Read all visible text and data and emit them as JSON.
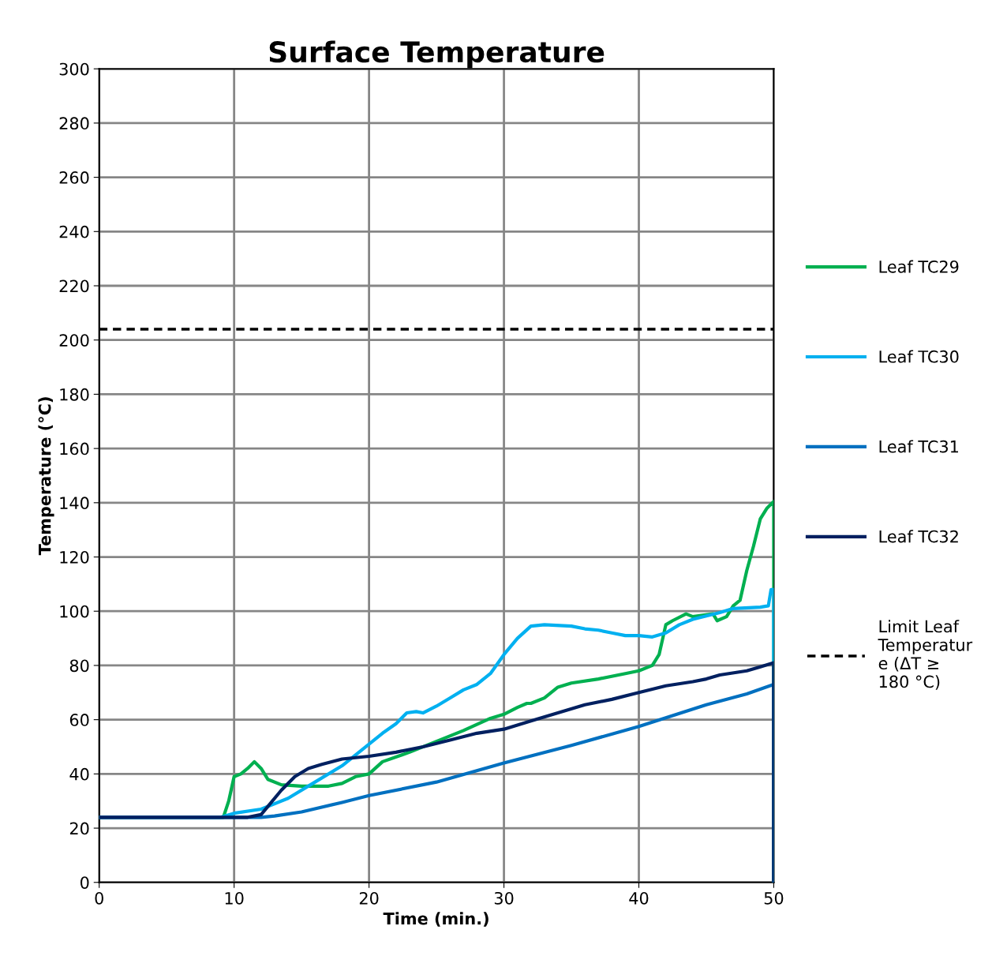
{
  "chart_data": {
    "type": "line",
    "title": "Surface Temperature",
    "xlabel": "Time (min.)",
    "ylabel": "Temperature (°C)",
    "xlim": [
      0,
      50
    ],
    "xticks": [
      0,
      10,
      20,
      30,
      40,
      50
    ],
    "ylim": [
      0,
      300
    ],
    "yticks": [
      0,
      20,
      40,
      60,
      80,
      100,
      120,
      140,
      160,
      180,
      200,
      220,
      240,
      260,
      280,
      300
    ],
    "grid": true,
    "legend": "right",
    "marker": "none",
    "line_style": "solid",
    "series": [
      {
        "name": "Leaf TC29",
        "color": "#00b050",
        "x": [
          0,
          5,
          9.2,
          9.6,
          10,
          10.5,
          11,
          11.5,
          12,
          12.5,
          13.5,
          15,
          17,
          18,
          19,
          20,
          21,
          23,
          25,
          27,
          29,
          30,
          31,
          31.7,
          32,
          33,
          34,
          35,
          37,
          39,
          40,
          41,
          41.5,
          42,
          42.5,
          43.5,
          44,
          45.5,
          45.8,
          46.5,
          47,
          47.5,
          48,
          48.5,
          49,
          49.5,
          50,
          50
        ],
        "values": [
          24,
          24,
          24,
          30,
          39,
          40,
          42,
          44.5,
          42,
          38,
          36,
          35.5,
          35.5,
          36.5,
          39,
          40,
          44.5,
          48,
          52,
          56,
          60.5,
          62,
          64.5,
          66,
          66,
          68,
          72,
          73.5,
          75,
          77,
          78,
          80,
          84,
          95,
          96.5,
          99,
          98,
          99,
          96.5,
          98,
          102,
          104,
          115,
          124,
          134,
          138,
          140.5,
          0
        ]
      },
      {
        "name": "Leaf TC30",
        "color": "#00b0f0",
        "x": [
          0,
          5,
          9,
          10,
          12,
          14,
          16,
          18,
          19,
          20,
          21,
          22,
          22.8,
          23.5,
          24,
          25,
          26,
          27,
          28,
          29,
          30,
          31,
          32,
          33,
          35,
          36,
          37,
          38,
          39,
          40,
          41,
          42,
          43,
          44,
          46,
          47,
          49,
          49.6,
          49.8,
          50,
          50
        ],
        "values": [
          24,
          24,
          24,
          25.5,
          27,
          31,
          37,
          43,
          47,
          51,
          55,
          58.5,
          62.5,
          63,
          62.5,
          65,
          68,
          71,
          73,
          77,
          84,
          90,
          94.5,
          95,
          94.5,
          93.5,
          93,
          92,
          91,
          91,
          90.5,
          92,
          95,
          97,
          99.5,
          101,
          101.5,
          102,
          108,
          108,
          0
        ]
      },
      {
        "name": "Leaf TC31",
        "color": "#0070c0",
        "x": [
          0,
          5,
          12,
          13,
          15,
          18,
          20,
          25,
          30,
          35,
          40,
          45,
          48,
          50,
          50
        ],
        "values": [
          24,
          24,
          24,
          24.5,
          26,
          29.5,
          32,
          37,
          44,
          50.5,
          57.5,
          65.5,
          69.5,
          73,
          0
        ]
      },
      {
        "name": "Leaf TC32",
        "color": "#002060",
        "x": [
          0,
          5,
          11,
          12,
          12.5,
          13.5,
          14.5,
          15.5,
          16.5,
          18,
          20,
          22,
          24,
          26,
          28,
          30,
          32,
          34,
          36,
          38,
          40,
          42,
          44,
          45,
          46,
          48,
          49,
          50,
          50
        ],
        "values": [
          24,
          24,
          24,
          25,
          28,
          34,
          39,
          42,
          43.5,
          45.5,
          46.5,
          48,
          50,
          52.5,
          55,
          56.5,
          59.5,
          62.5,
          65.5,
          67.5,
          70,
          72.5,
          74,
          75,
          76.5,
          78,
          79.5,
          81,
          0
        ]
      }
    ],
    "ref_lines": [
      {
        "axis": "y",
        "value": 204,
        "label": "Limit Leaf Temperature (ΔT ≥ 180 °C)",
        "color": "#000000",
        "line_style": "dashed"
      }
    ]
  }
}
